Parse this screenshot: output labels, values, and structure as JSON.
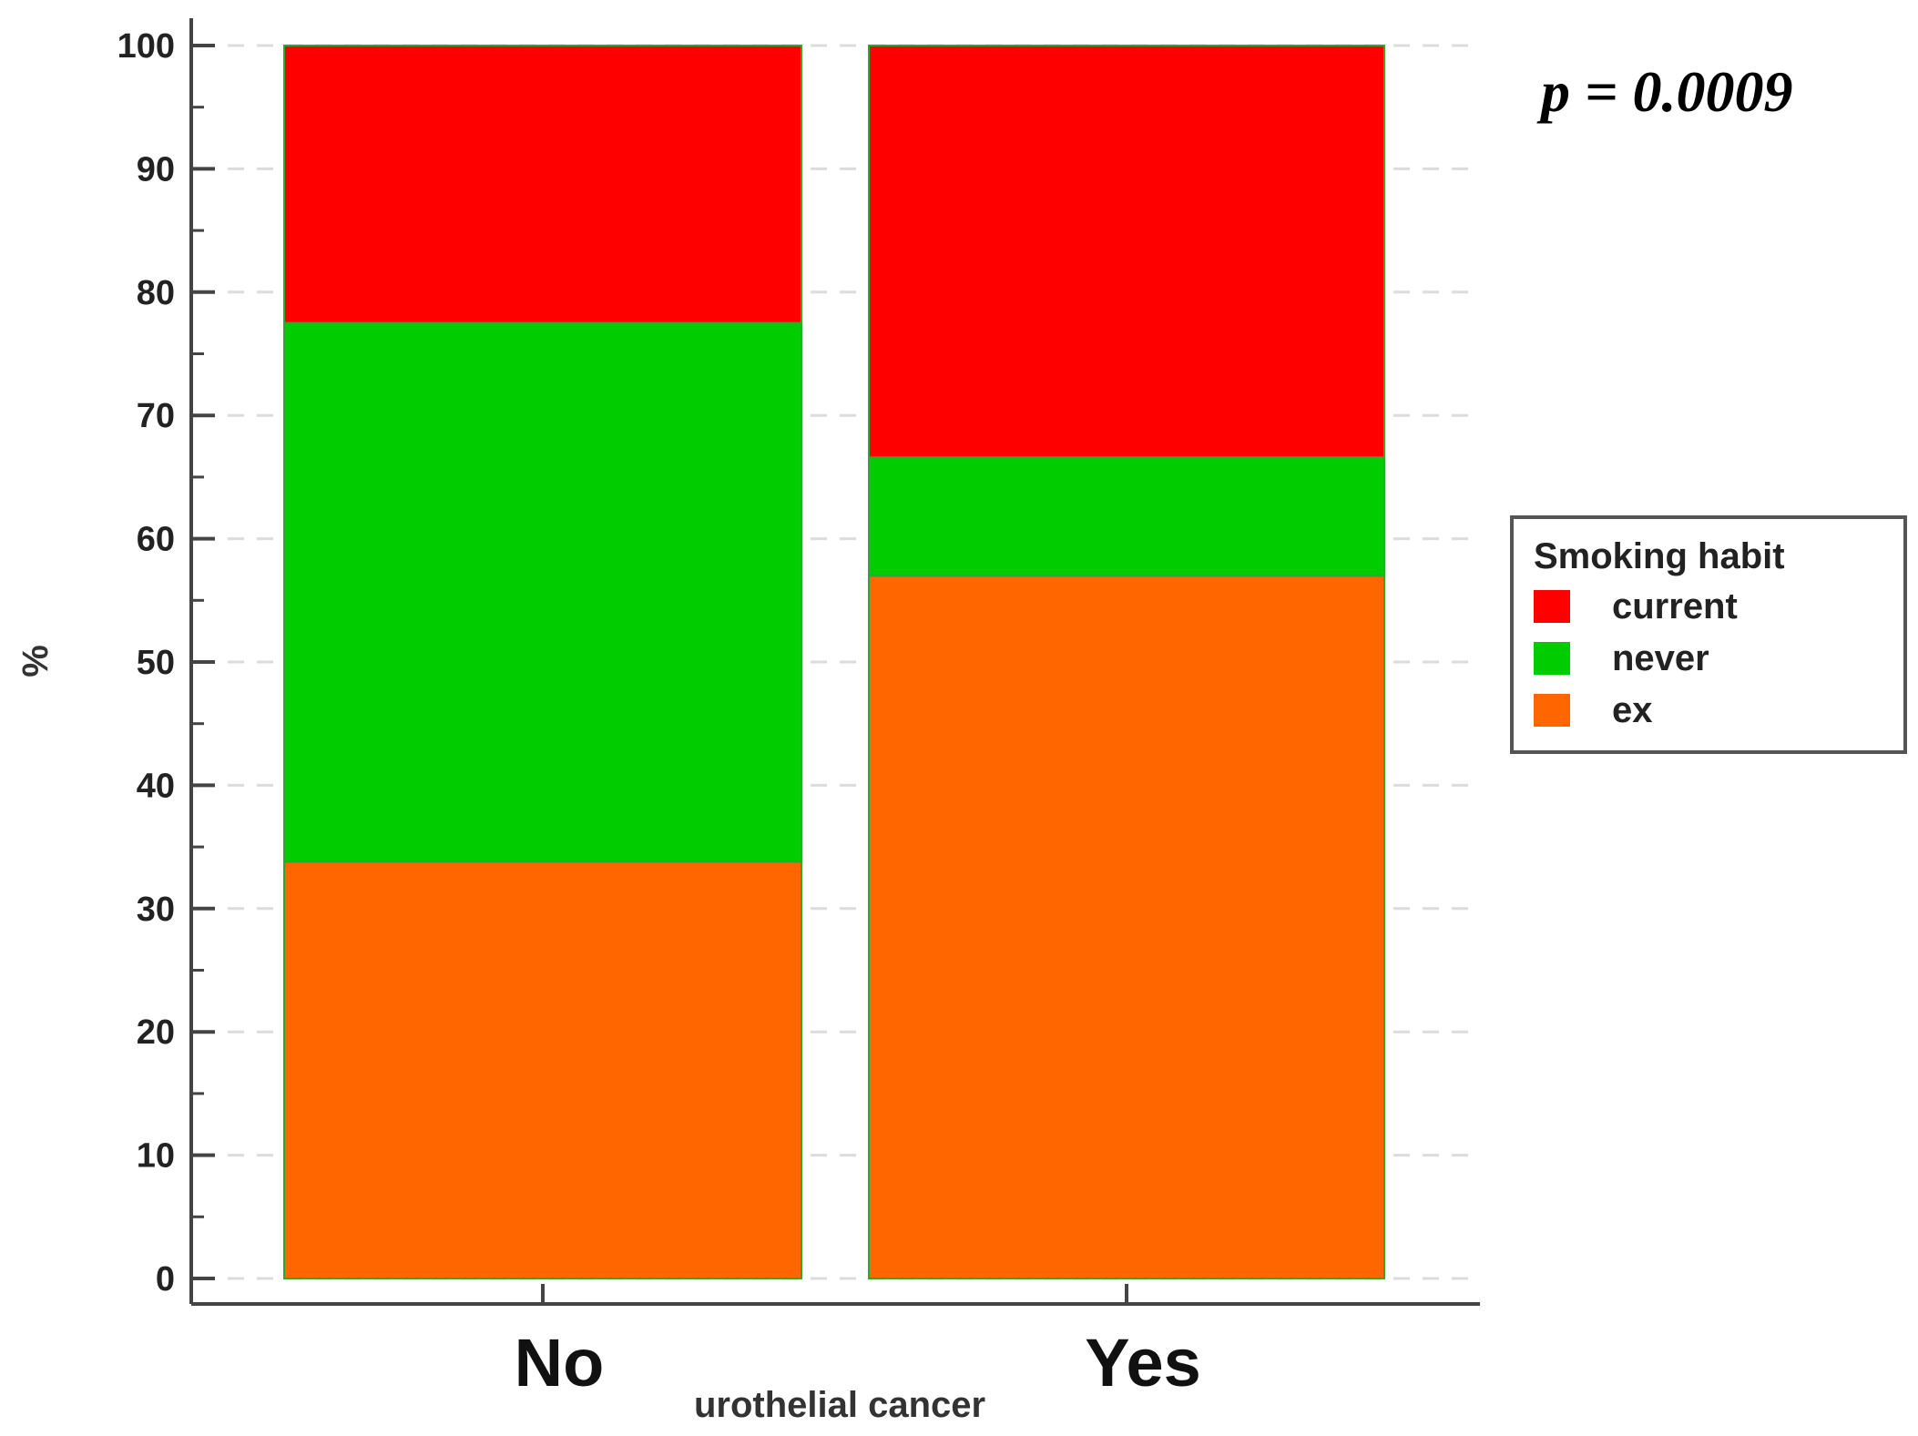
{
  "chart_data": {
    "type": "bar",
    "stacked": true,
    "categories": [
      "No",
      "Yes"
    ],
    "series": [
      {
        "name": "ex",
        "values": [
          33.8,
          57.0
        ],
        "color": "#ff6600"
      },
      {
        "name": "never",
        "values": [
          43.7,
          9.6
        ],
        "color": "#00cc00"
      },
      {
        "name": "current",
        "values": [
          22.5,
          33.4
        ],
        "color": "#ff0000"
      }
    ],
    "xlabel": "urothelial cancer",
    "ylabel": "%",
    "ylim": [
      0,
      100
    ],
    "yticks": [
      "0",
      "10",
      "20",
      "30",
      "40",
      "50",
      "60",
      "70",
      "80",
      "90",
      "100"
    ],
    "annotation": "p = 0.0009",
    "legend": {
      "title": "Smoking habit",
      "position": "right",
      "entries": [
        {
          "label": "current",
          "color": "#ff0000"
        },
        {
          "label": "never",
          "color": "#00cc00"
        },
        {
          "label": "ex",
          "color": "#ff6600"
        }
      ]
    },
    "grid": true
  }
}
